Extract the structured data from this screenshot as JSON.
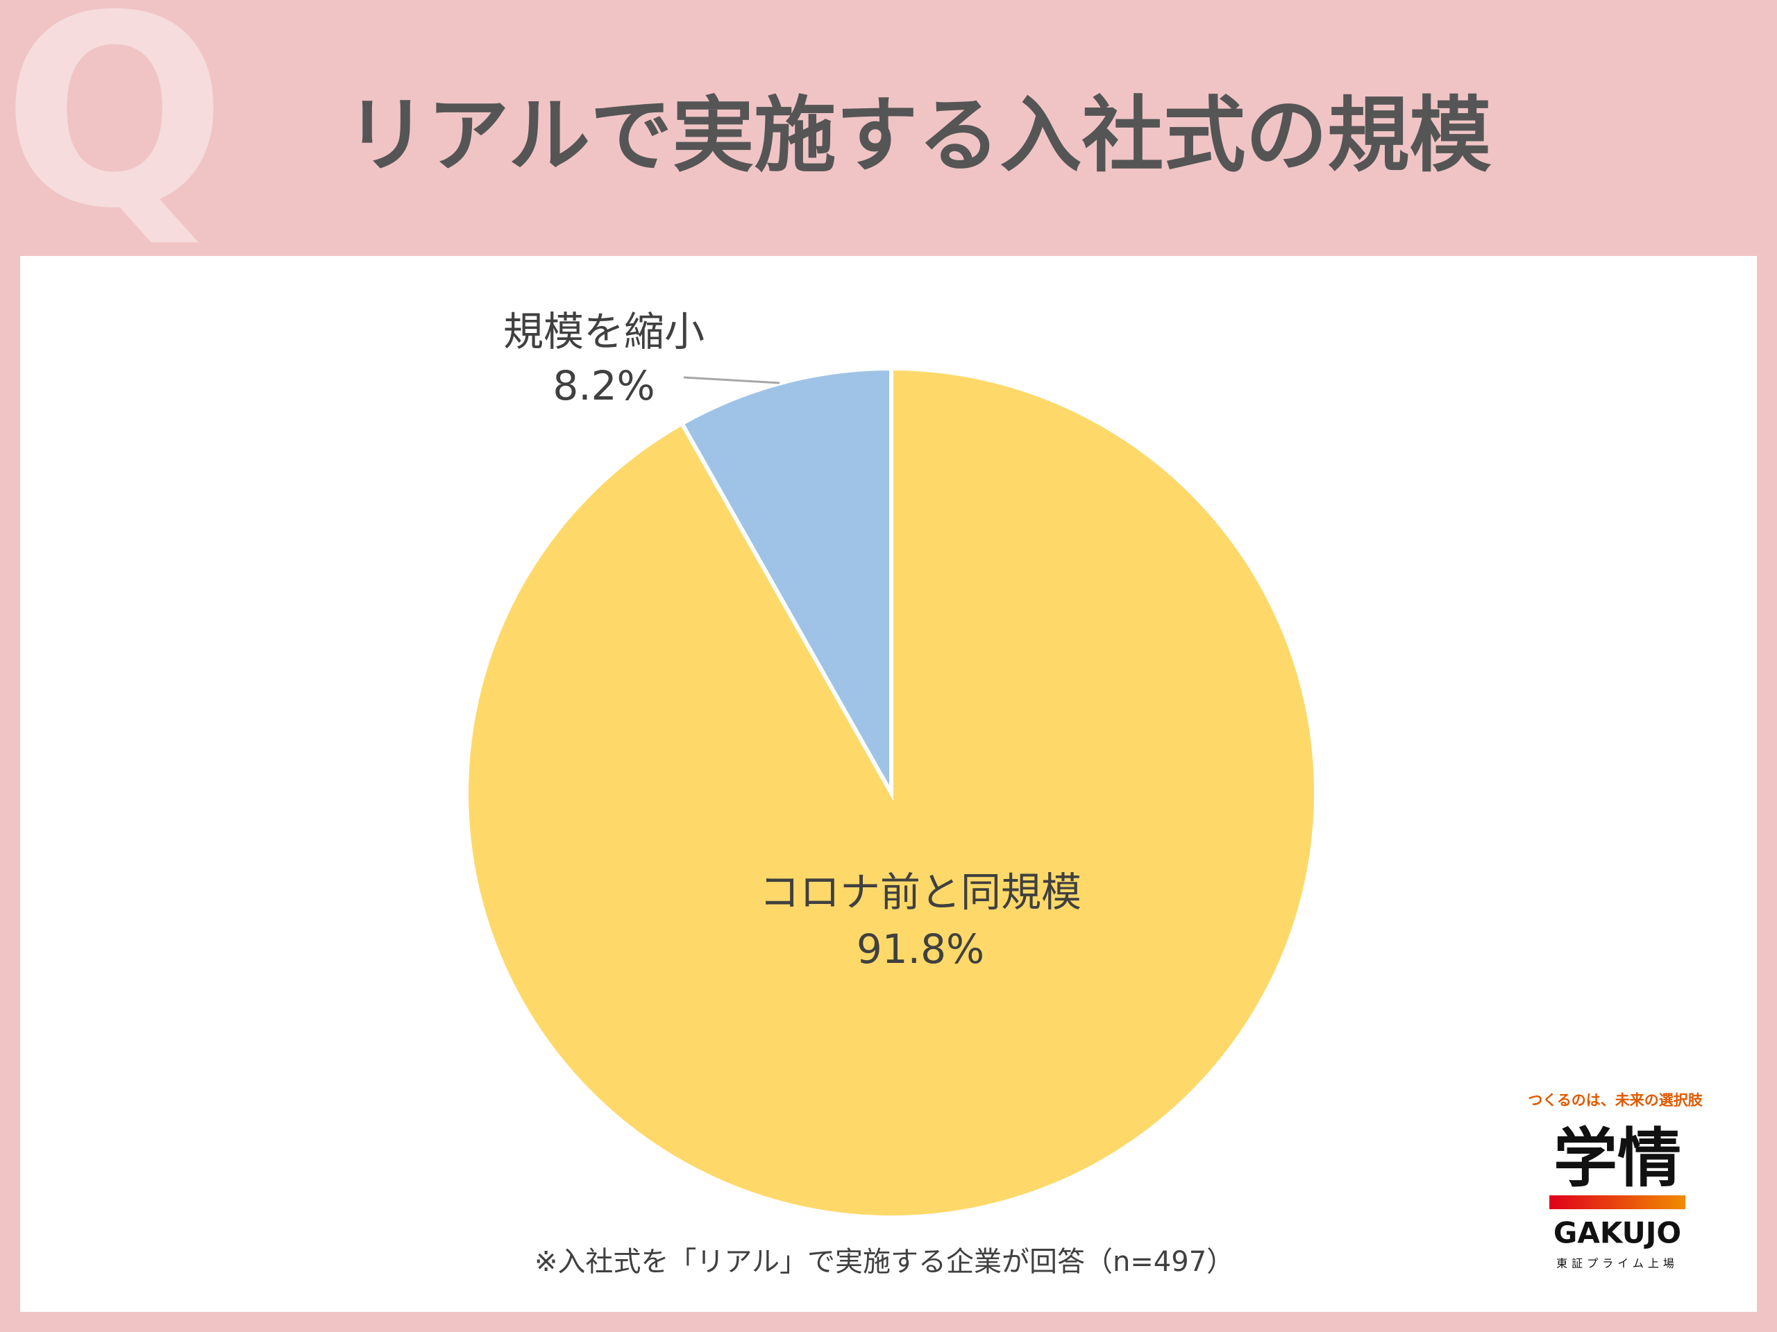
{
  "badge": "Q",
  "chart_data": {
    "type": "pie",
    "title": "リアルで実施する入社式の規模",
    "categories": [
      "コロナ前と同規模",
      "規模を縮小"
    ],
    "values": [
      91.8,
      8.2
    ],
    "value_labels": [
      "91.8%",
      "8.2%"
    ],
    "colors": [
      "#fed96a",
      "#9fc3e6"
    ],
    "note": "※入社式を「リアル」で実施する企業が回答（n=497）"
  },
  "branding": {
    "tagline": "つくるのは、未来の選択肢",
    "logo": "学情",
    "name": "GAKUJO",
    "listing": "東証プライム上場"
  }
}
